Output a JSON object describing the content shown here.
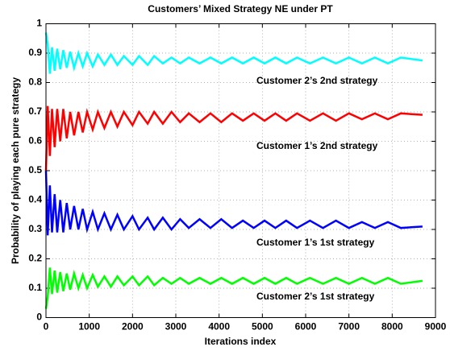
{
  "chart_data": {
    "type": "line",
    "title": "Customers’ Mixed Strategy NE under PT",
    "xlabel": "Iterations index",
    "ylabel": "Probability of playing each pure strategy",
    "xlim": [
      0,
      9000
    ],
    "ylim": [
      0,
      1
    ],
    "xticks": [
      0,
      1000,
      2000,
      3000,
      4000,
      5000,
      6000,
      7000,
      8000,
      9000
    ],
    "yticks": [
      0,
      0.1,
      0.2,
      0.3,
      0.4,
      0.5,
      0.6,
      0.7,
      0.8,
      0.9,
      1
    ],
    "grid": true,
    "x": [
      0,
      40,
      90,
      140,
      200,
      260,
      330,
      400,
      480,
      560,
      650,
      750,
      850,
      950,
      1080,
      1200,
      1350,
      1500,
      1650,
      1800,
      2000,
      2150,
      2350,
      2500,
      2700,
      2900,
      3100,
      3300,
      3550,
      3800,
      4050,
      4300,
      4550,
      4800,
      5050,
      5300,
      5550,
      5800,
      6100,
      6400,
      6700,
      7000,
      7300,
      7600,
      7900,
      8200,
      8700
    ],
    "series": [
      {
        "color": "#00ffff",
        "values": [
          0.97,
          0.93,
          0.83,
          0.92,
          0.84,
          0.915,
          0.845,
          0.91,
          0.85,
          0.905,
          0.85,
          0.9,
          0.855,
          0.9,
          0.855,
          0.895,
          0.86,
          0.895,
          0.86,
          0.89,
          0.86,
          0.89,
          0.86,
          0.89,
          0.865,
          0.885,
          0.865,
          0.885,
          0.865,
          0.885,
          0.865,
          0.885,
          0.865,
          0.885,
          0.865,
          0.885,
          0.865,
          0.885,
          0.865,
          0.885,
          0.865,
          0.885,
          0.865,
          0.885,
          0.865,
          0.885,
          0.875
        ]
      },
      {
        "color": "#ff0000",
        "values": [
          0.5,
          0.72,
          0.55,
          0.71,
          0.58,
          0.71,
          0.6,
          0.71,
          0.61,
          0.7,
          0.62,
          0.7,
          0.63,
          0.7,
          0.64,
          0.7,
          0.645,
          0.7,
          0.65,
          0.7,
          0.655,
          0.7,
          0.66,
          0.7,
          0.66,
          0.7,
          0.665,
          0.695,
          0.665,
          0.695,
          0.665,
          0.695,
          0.67,
          0.695,
          0.67,
          0.695,
          0.67,
          0.695,
          0.67,
          0.695,
          0.67,
          0.695,
          0.675,
          0.695,
          0.675,
          0.695,
          0.69
        ]
      },
      {
        "color": "#0000ff",
        "values": [
          0.5,
          0.28,
          0.45,
          0.29,
          0.42,
          0.29,
          0.4,
          0.29,
          0.39,
          0.3,
          0.38,
          0.3,
          0.37,
          0.3,
          0.36,
          0.3,
          0.355,
          0.3,
          0.35,
          0.3,
          0.345,
          0.3,
          0.34,
          0.3,
          0.34,
          0.3,
          0.335,
          0.305,
          0.335,
          0.305,
          0.335,
          0.305,
          0.33,
          0.305,
          0.33,
          0.305,
          0.33,
          0.305,
          0.33,
          0.305,
          0.33,
          0.305,
          0.325,
          0.305,
          0.325,
          0.305,
          0.31
        ]
      },
      {
        "color": "#00ff00",
        "values": [
          0.03,
          0.07,
          0.17,
          0.08,
          0.16,
          0.085,
          0.155,
          0.09,
          0.15,
          0.095,
          0.15,
          0.1,
          0.145,
          0.1,
          0.145,
          0.105,
          0.14,
          0.105,
          0.14,
          0.11,
          0.14,
          0.11,
          0.14,
          0.11,
          0.135,
          0.115,
          0.135,
          0.115,
          0.135,
          0.115,
          0.135,
          0.115,
          0.135,
          0.115,
          0.135,
          0.115,
          0.135,
          0.115,
          0.135,
          0.115,
          0.135,
          0.115,
          0.135,
          0.115,
          0.135,
          0.115,
          0.125
        ]
      }
    ],
    "annotations": [
      "Customer 2’s 2nd strategy",
      "Customer 1’s 2nd strategy",
      "Customer 1’s 1st strategy",
      "Customer 2’s 1st strategy"
    ]
  }
}
